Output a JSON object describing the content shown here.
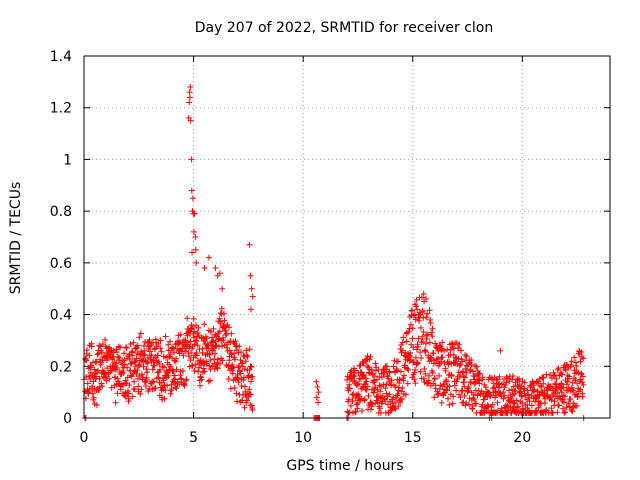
{
  "chart_data": {
    "type": "scatter",
    "title": "Day 207 of 2022, SRMTID for receiver clon",
    "xlabel": "GPS time / hours",
    "ylabel": "SRMTID / TECUs",
    "xlim": [
      0,
      24
    ],
    "ylim": [
      0,
      1.4
    ],
    "xticks": [
      0,
      5,
      10,
      15,
      20
    ],
    "xtick_labels": [
      "0",
      "5",
      "10",
      "15",
      "20"
    ],
    "yticks": [
      0,
      0.2,
      0.4,
      0.6,
      0.8,
      1,
      1.2,
      1.4
    ],
    "ytick_labels": [
      "0",
      "0.2",
      "0.4",
      "0.6",
      "0.8",
      "1",
      "1.2",
      "1.4"
    ],
    "grid": true,
    "marker": "+",
    "color": "#ff0000",
    "series": [
      {
        "name": "SRMTID",
        "profile_x": [
          0.0,
          0.3,
          0.5,
          0.7,
          1.0,
          1.5,
          2.0,
          2.5,
          3.0,
          3.5,
          4.0,
          4.5,
          4.8,
          5.0,
          5.3,
          5.6,
          6.0,
          6.3,
          6.6,
          7.0,
          7.3,
          7.7
        ],
        "profile_y": [
          0.15,
          0.2,
          0.12,
          0.17,
          0.19,
          0.18,
          0.17,
          0.2,
          0.21,
          0.19,
          0.2,
          0.22,
          0.28,
          0.3,
          0.22,
          0.25,
          0.28,
          0.32,
          0.25,
          0.18,
          0.15,
          0.14
        ],
        "profile2_x": [
          12.0,
          12.5,
          13.0,
          13.5,
          14.0,
          14.5,
          15.0,
          15.3,
          15.7,
          16.0,
          16.5,
          17.0,
          17.5,
          18.0,
          18.5,
          19.0,
          19.5,
          20.0,
          20.5,
          21.0,
          21.5,
          22.0,
          22.5,
          22.8
        ],
        "profile2_y": [
          0.08,
          0.11,
          0.14,
          0.1,
          0.11,
          0.18,
          0.28,
          0.32,
          0.29,
          0.2,
          0.16,
          0.18,
          0.14,
          0.1,
          0.08,
          0.09,
          0.08,
          0.07,
          0.06,
          0.08,
          0.1,
          0.12,
          0.14,
          0.18
        ],
        "points": [
          [
            0.05,
            0.0
          ],
          [
            0.08,
            0.0
          ],
          [
            0.0,
            0.15
          ],
          [
            4.78,
            1.16
          ],
          [
            4.8,
            1.22
          ],
          [
            4.82,
            1.26
          ],
          [
            4.85,
            1.28
          ],
          [
            4.83,
            1.24
          ],
          [
            4.87,
            1.15
          ],
          [
            4.9,
            1.0
          ],
          [
            4.92,
            0.88
          ],
          [
            4.95,
            0.8
          ],
          [
            4.97,
            0.85
          ],
          [
            5.0,
            0.79
          ],
          [
            5.02,
            0.72
          ],
          [
            5.05,
            0.79
          ],
          [
            5.08,
            0.7
          ],
          [
            5.1,
            0.65
          ],
          [
            5.12,
            0.6
          ],
          [
            4.93,
            0.64
          ],
          [
            5.5,
            0.58
          ],
          [
            5.7,
            0.62
          ],
          [
            6.0,
            0.58
          ],
          [
            6.1,
            0.55
          ],
          [
            6.2,
            0.56
          ],
          [
            6.3,
            0.5
          ],
          [
            7.55,
            0.67
          ],
          [
            7.6,
            0.55
          ],
          [
            7.65,
            0.5
          ],
          [
            7.7,
            0.47
          ],
          [
            7.62,
            0.42
          ],
          [
            10.5,
            0.0
          ],
          [
            10.55,
            0.0
          ],
          [
            10.6,
            0.0
          ],
          [
            10.65,
            0.0
          ],
          [
            10.7,
            0.0
          ],
          [
            10.75,
            0.0
          ],
          [
            10.6,
            0.14
          ],
          [
            10.65,
            0.12
          ],
          [
            10.7,
            0.1
          ],
          [
            10.62,
            0.08
          ],
          [
            10.68,
            0.06
          ],
          [
            12.0,
            0.0
          ],
          [
            12.05,
            0.0
          ],
          [
            15.1,
            0.44
          ],
          [
            15.2,
            0.42
          ],
          [
            15.3,
            0.4
          ],
          [
            15.5,
            0.48
          ],
          [
            15.6,
            0.46
          ],
          [
            18.5,
            0.0
          ],
          [
            18.6,
            0.0
          ],
          [
            19.0,
            0.26
          ],
          [
            22.8,
            0.0
          ]
        ]
      }
    ]
  }
}
